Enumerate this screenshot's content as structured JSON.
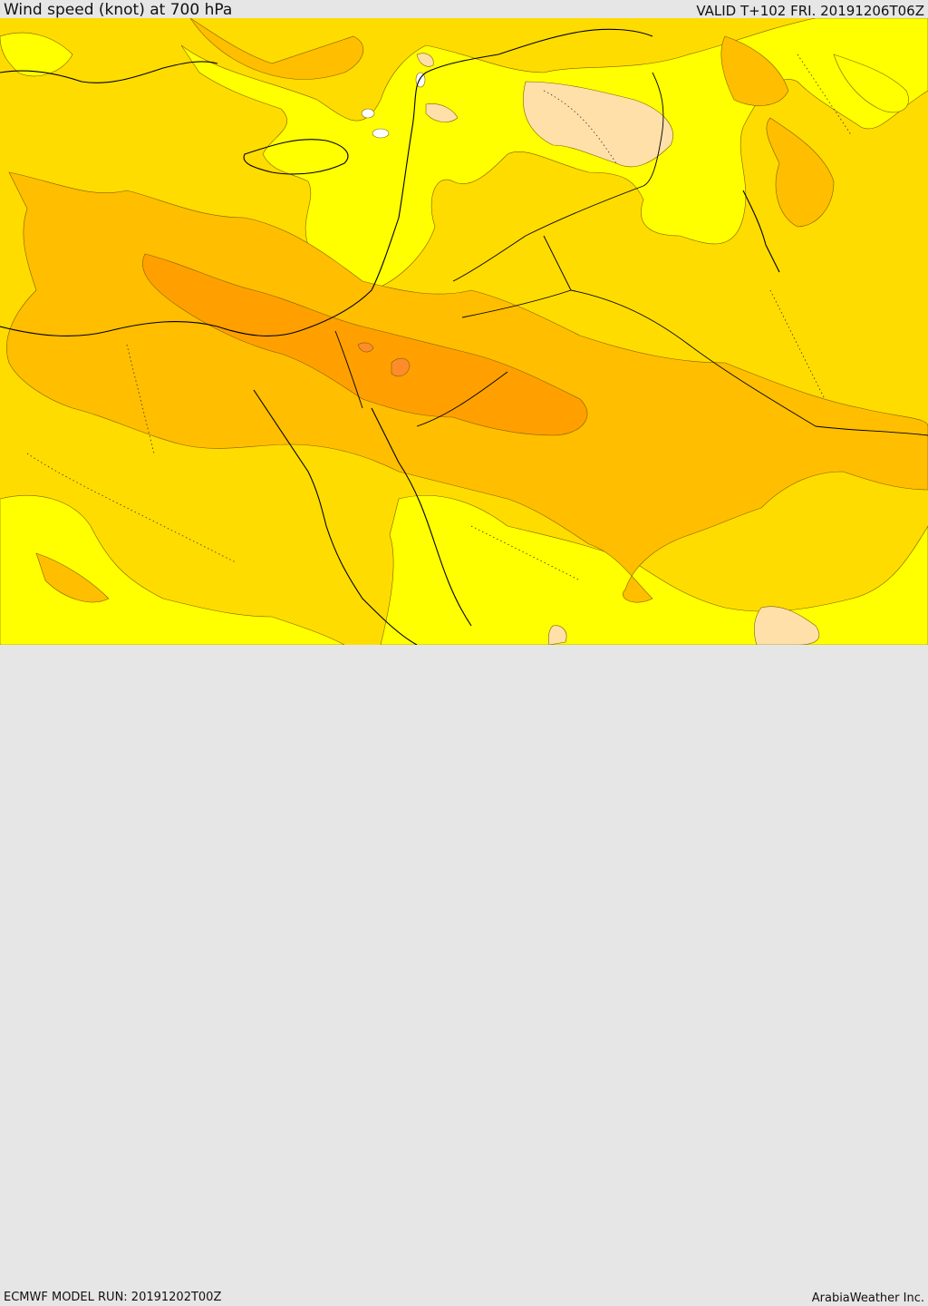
{
  "header": {
    "title": "Wind speed (knot) at 700 hPa",
    "valid": "VALID T+102 FRI. 20191206T06Z"
  },
  "footer": {
    "model_run": "ECMWF MODEL RUN: 20191202T00Z",
    "credit": "ArabiaWeather Inc."
  },
  "colors": {
    "bin_0": "#ffff00",
    "bin_1": "#ffdc00",
    "bin_2": "#ffbe00",
    "bin_3": "#ffa000",
    "bin_4": "#ff8c2a",
    "bin_calm": "#ffe0a8",
    "bin_low": "#ffffff"
  }
}
